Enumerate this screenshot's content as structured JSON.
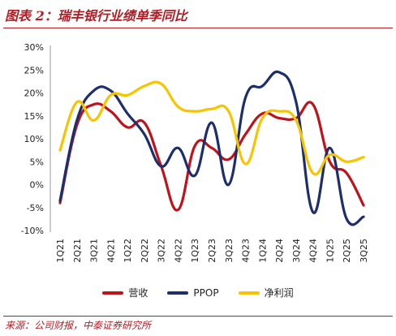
{
  "title": "图表 2：瑞丰银行业绩单季同比",
  "source": "来源：公司财报，中泰证券研究所",
  "colors": {
    "营收": "#c0121b",
    "PPOP": "#1c2f6b",
    "净利润": "#f7c400",
    "title": "#b11d24"
  },
  "chart_data": {
    "type": "line",
    "categories": [
      "1Q21",
      "2Q21",
      "3Q21",
      "4Q21",
      "1Q22",
      "2Q22",
      "3Q22",
      "4Q22",
      "1Q23",
      "2Q23",
      "3Q23",
      "4Q23",
      "1Q24",
      "2Q24",
      "3Q24",
      "4Q24",
      "1Q25",
      "2Q25",
      "3Q25"
    ],
    "y_ticks": [
      "30%",
      "25%",
      "20%",
      "15%",
      "10%",
      "5%",
      "0%",
      "-5%",
      "-10%"
    ],
    "ylim": [
      -10,
      30
    ],
    "grid": false,
    "legend_position": "bottom",
    "series": [
      {
        "name": "营收",
        "values": [
          -4,
          13,
          17.5,
          16,
          12.5,
          13.5,
          4,
          -5.5,
          8.5,
          8,
          5.5,
          11,
          15.5,
          14.5,
          14.5,
          17.5,
          5,
          2.5,
          -4.5
        ]
      },
      {
        "name": "PPOP",
        "values": [
          -3.5,
          14,
          20.5,
          20.5,
          15.5,
          11,
          4,
          8,
          2,
          13.5,
          0,
          19,
          21.5,
          24.5,
          18,
          -6,
          8,
          -7.5,
          -7
        ]
      },
      {
        "name": "净利润",
        "values": [
          7.5,
          18,
          14,
          19.5,
          19.5,
          21.5,
          22,
          17,
          16,
          16.5,
          16,
          4.5,
          14.5,
          16,
          14,
          2.5,
          6.5,
          5,
          6
        ]
      }
    ]
  }
}
